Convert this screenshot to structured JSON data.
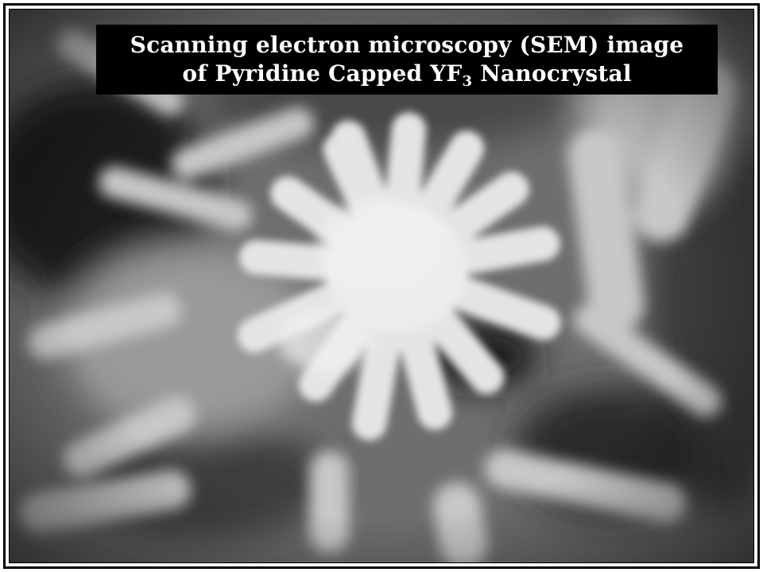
{
  "caption": {
    "line1": "Scanning electron microscopy (SEM) image",
    "line2_prefix": "of Pyridine Capped YF",
    "line2_subscript": "3",
    "line2_suffix": " Nanocrystal"
  },
  "colors": {
    "caption_background": "#000000",
    "caption_text": "#ffffff",
    "frame": "#000000"
  }
}
